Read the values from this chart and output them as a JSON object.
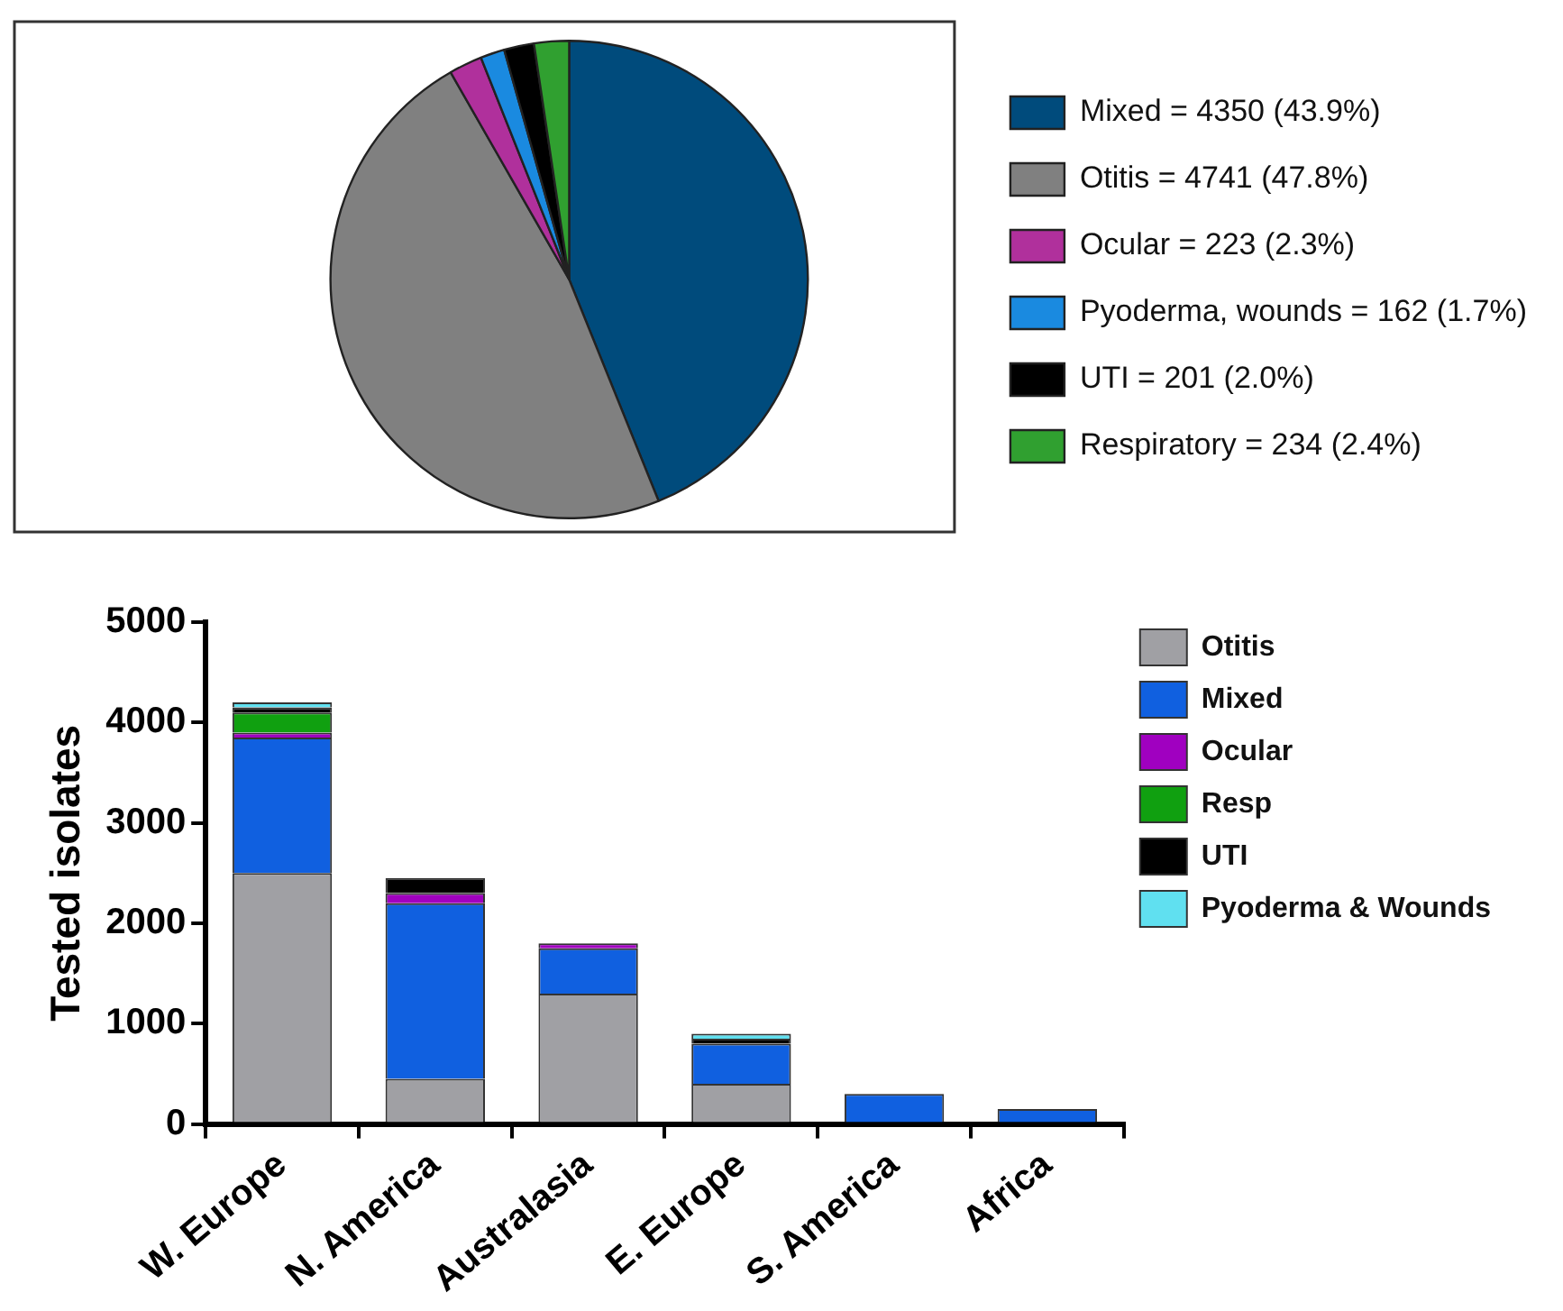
{
  "chart_data": [
    {
      "type": "pie",
      "categories": [
        "Mixed = 4350 (43.9%)",
        "Otitis = 4741 (47.8%)",
        "Ocular = 223 (2.3%)",
        "Pyoderma, wounds = 162 (1.7%)",
        "UTI = 201 (2.0%)",
        "Respiratory = 234 (2.4%)"
      ],
      "values": [
        4350,
        4741,
        223,
        162,
        201,
        234
      ],
      "colors": [
        "#004b7c",
        "#808080",
        "#b0309c",
        "#1a8ae0",
        "#000000",
        "#30a030"
      ],
      "legend": "right"
    },
    {
      "type": "bar",
      "stacked": true,
      "categories": [
        "W. Europe",
        "N. America",
        "Australasia",
        "E. Europe",
        "S. America",
        "Africa"
      ],
      "ylabel": "Tested isolates",
      "ylim": [
        0,
        5000
      ],
      "yticks": [
        0,
        1000,
        2000,
        3000,
        4000,
        5000
      ],
      "grid": false,
      "legend": "top right",
      "series": [
        {
          "name": "Otitis",
          "color": "#a0a0a4",
          "values": [
            2500,
            450,
            1300,
            400,
            0,
            0
          ]
        },
        {
          "name": "Mixed",
          "color": "#1060e0",
          "values": [
            1350,
            1750,
            450,
            400,
            300,
            150
          ]
        },
        {
          "name": "Ocular",
          "color": "#a000c0",
          "values": [
            50,
            100,
            50,
            0,
            0,
            0
          ]
        },
        {
          "name": "Resp",
          "color": "#10a010",
          "values": [
            200,
            0,
            0,
            0,
            0,
            0
          ]
        },
        {
          "name": "UTI",
          "color": "#000000",
          "values": [
            50,
            150,
            0,
            50,
            0,
            0
          ]
        },
        {
          "name": "Pyoderma & Wounds",
          "color": "#60e0f0",
          "values": [
            50,
            0,
            0,
            50,
            0,
            0
          ]
        }
      ]
    }
  ]
}
